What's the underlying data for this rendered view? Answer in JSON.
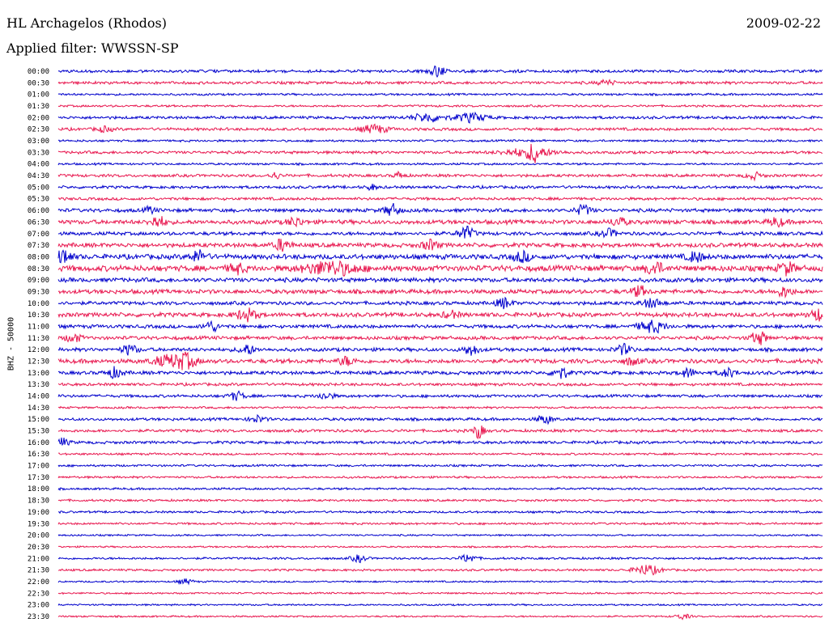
{
  "header": {
    "station": "HL Archagelos (Rhodos)",
    "date": "2009-02-22",
    "filter": "Applied filter: WWSSN-SP"
  },
  "chart_data": {
    "type": "line",
    "title": "HL Archagelos (Rhodos)",
    "date": "2009-02-22",
    "filter": "WWSSN-SP",
    "ylabel": "BHZ - 50000",
    "xlabel": "",
    "row_labels": [
      "00:00",
      "00:30",
      "01:00",
      "01:30",
      "02:00",
      "02:30",
      "03:00",
      "03:30",
      "04:00",
      "04:30",
      "05:00",
      "05:30",
      "06:00",
      "06:30",
      "07:00",
      "07:30",
      "08:00",
      "08:30",
      "09:00",
      "09:30",
      "10:00",
      "10:30",
      "11:00",
      "11:30",
      "12:00",
      "12:30",
      "13:00",
      "13:30",
      "14:00",
      "14:30",
      "15:00",
      "15:30",
      "16:00",
      "16:30",
      "17:00",
      "17:30",
      "18:00",
      "18:30",
      "19:00",
      "19:30",
      "20:00",
      "20:30",
      "21:00",
      "21:30",
      "22:00",
      "22:30",
      "23:00",
      "23:30"
    ],
    "row_colors": [
      "#0000cc",
      "#e8174f"
    ],
    "row_span_minutes": 30,
    "noise_amplitude": [
      2,
      2,
      1.5,
      1.5,
      2,
      2,
      1.5,
      2,
      1.5,
      2,
      2,
      2,
      2.5,
      3,
      2.5,
      3,
      3.5,
      4,
      3,
      3,
      2.5,
      3,
      2.5,
      2.5,
      2.5,
      3,
      2.5,
      2,
      2,
      1.5,
      2,
      2,
      2,
      1.5,
      1.5,
      1.5,
      1.5,
      1.5,
      1.5,
      1.5,
      1.2,
      1.2,
      1.5,
      1.5,
      1.2,
      1.2,
      1.2,
      1.2
    ],
    "events": [
      {
        "row": 0,
        "minute": 14.9,
        "amp": 6,
        "width": 0.3
      },
      {
        "row": 1,
        "minute": 21.5,
        "amp": 3,
        "width": 0.3
      },
      {
        "row": 4,
        "minute": 14.5,
        "amp": 5,
        "width": 0.6
      },
      {
        "row": 4,
        "minute": 16.2,
        "amp": 5,
        "width": 0.6
      },
      {
        "row": 5,
        "minute": 12.4,
        "amp": 5,
        "width": 0.5
      },
      {
        "row": 5,
        "minute": 1.8,
        "amp": 3,
        "width": 0.3
      },
      {
        "row": 7,
        "minute": 18.5,
        "amp": 5,
        "width": 1.0
      },
      {
        "row": 7,
        "minute": 18.7,
        "amp": 9,
        "width": 0.2
      },
      {
        "row": 9,
        "minute": 8.5,
        "amp": 4,
        "width": 0.2
      },
      {
        "row": 9,
        "minute": 13.4,
        "amp": 4,
        "width": 0.2
      },
      {
        "row": 9,
        "minute": 27.3,
        "amp": 4,
        "width": 0.3
      },
      {
        "row": 10,
        "minute": 12.3,
        "amp": 3,
        "width": 0.2
      },
      {
        "row": 12,
        "minute": 3.6,
        "amp": 4,
        "width": 0.2
      },
      {
        "row": 12,
        "minute": 13.1,
        "amp": 7,
        "width": 0.3
      },
      {
        "row": 12,
        "minute": 20.6,
        "amp": 6,
        "width": 0.3
      },
      {
        "row": 13,
        "minute": 3.9,
        "amp": 7,
        "width": 0.3
      },
      {
        "row": 13,
        "minute": 9.3,
        "amp": 5,
        "width": 0.3
      },
      {
        "row": 13,
        "minute": 22.0,
        "amp": 5,
        "width": 0.3
      },
      {
        "row": 13,
        "minute": 28.2,
        "amp": 5,
        "width": 0.3
      },
      {
        "row": 14,
        "minute": 16.0,
        "amp": 8,
        "width": 0.3
      },
      {
        "row": 14,
        "minute": 21.6,
        "amp": 5,
        "width": 0.3
      },
      {
        "row": 15,
        "minute": 8.8,
        "amp": 7,
        "width": 0.3
      },
      {
        "row": 15,
        "minute": 14.6,
        "amp": 6,
        "width": 0.3
      },
      {
        "row": 16,
        "minute": 0.2,
        "amp": 9,
        "width": 0.3
      },
      {
        "row": 16,
        "minute": 5.5,
        "amp": 7,
        "width": 0.3
      },
      {
        "row": 16,
        "minute": 18.2,
        "amp": 6,
        "width": 0.3
      },
      {
        "row": 16,
        "minute": 25.0,
        "amp": 6,
        "width": 0.3
      },
      {
        "row": 17,
        "minute": 7.0,
        "amp": 6,
        "width": 0.3
      },
      {
        "row": 17,
        "minute": 10.7,
        "amp": 8,
        "width": 1.0
      },
      {
        "row": 17,
        "minute": 23.4,
        "amp": 8,
        "width": 0.3
      },
      {
        "row": 17,
        "minute": 28.6,
        "amp": 7,
        "width": 0.3
      },
      {
        "row": 19,
        "minute": 22.8,
        "amp": 6,
        "width": 0.3
      },
      {
        "row": 19,
        "minute": 28.5,
        "amp": 6,
        "width": 0.3
      },
      {
        "row": 20,
        "minute": 17.5,
        "amp": 6,
        "width": 0.3
      },
      {
        "row": 20,
        "minute": 23.3,
        "amp": 5,
        "width": 0.4
      },
      {
        "row": 21,
        "minute": 7.4,
        "amp": 7,
        "width": 0.4
      },
      {
        "row": 21,
        "minute": 15.4,
        "amp": 4,
        "width": 0.3
      },
      {
        "row": 21,
        "minute": 29.8,
        "amp": 7,
        "width": 0.3
      },
      {
        "row": 22,
        "minute": 6.0,
        "amp": 6,
        "width": 0.3
      },
      {
        "row": 22,
        "minute": 23.3,
        "amp": 7,
        "width": 0.5
      },
      {
        "row": 23,
        "minute": 0.6,
        "amp": 5,
        "width": 0.3
      },
      {
        "row": 23,
        "minute": 27.5,
        "amp": 8,
        "width": 0.3
      },
      {
        "row": 24,
        "minute": 2.8,
        "amp": 6,
        "width": 0.3
      },
      {
        "row": 24,
        "minute": 7.4,
        "amp": 6,
        "width": 0.3
      },
      {
        "row": 24,
        "minute": 16.2,
        "amp": 6,
        "width": 0.3
      },
      {
        "row": 24,
        "minute": 22.2,
        "amp": 6,
        "width": 0.3
      },
      {
        "row": 25,
        "minute": 4.3,
        "amp": 6,
        "width": 0.6
      },
      {
        "row": 25,
        "minute": 5.0,
        "amp": 8,
        "width": 0.4
      },
      {
        "row": 25,
        "minute": 11.3,
        "amp": 5,
        "width": 0.3
      },
      {
        "row": 25,
        "minute": 22.5,
        "amp": 4,
        "width": 0.3
      },
      {
        "row": 26,
        "minute": 2.2,
        "amp": 6,
        "width": 0.3
      },
      {
        "row": 26,
        "minute": 19.7,
        "amp": 7,
        "width": 0.3
      },
      {
        "row": 26,
        "minute": 24.7,
        "amp": 5,
        "width": 0.3
      },
      {
        "row": 26,
        "minute": 26.3,
        "amp": 5,
        "width": 0.3
      },
      {
        "row": 28,
        "minute": 7.0,
        "amp": 5,
        "width": 0.3
      },
      {
        "row": 28,
        "minute": 10.5,
        "amp": 4,
        "width": 0.3
      },
      {
        "row": 30,
        "minute": 7.8,
        "amp": 4,
        "width": 0.3
      },
      {
        "row": 30,
        "minute": 19.1,
        "amp": 5,
        "width": 0.3
      },
      {
        "row": 31,
        "minute": 16.5,
        "amp": 9,
        "width": 0.2
      },
      {
        "row": 32,
        "minute": 0.1,
        "amp": 5,
        "width": 0.3
      },
      {
        "row": 42,
        "minute": 11.8,
        "amp": 4,
        "width": 0.3
      },
      {
        "row": 42,
        "minute": 16.1,
        "amp": 5,
        "width": 0.3
      },
      {
        "row": 43,
        "minute": 23.1,
        "amp": 6,
        "width": 0.5
      },
      {
        "row": 44,
        "minute": 5.0,
        "amp": 3,
        "width": 0.3
      },
      {
        "row": 47,
        "minute": 24.5,
        "amp": 3,
        "width": 0.3
      }
    ],
    "grid": false,
    "legend": "none"
  }
}
